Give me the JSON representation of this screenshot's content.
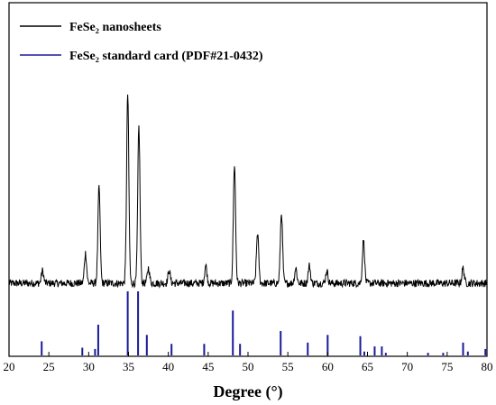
{
  "chart_data": {
    "type": "line",
    "xlabel": "Degree (°)",
    "xlim": [
      20,
      80
    ],
    "x_ticks": [
      20,
      25,
      30,
      35,
      40,
      45,
      50,
      55,
      60,
      65,
      70,
      75,
      80
    ],
    "y_axis_visible": false,
    "grid": false,
    "legend_placement": "top-left",
    "series": [
      {
        "name": "FeSe₂ nanosheets",
        "color": "#000000",
        "kind": "xrd_pattern",
        "baseline": 0.05,
        "peaks": [
          {
            "two_theta": 24.2,
            "intensity": 0.05
          },
          {
            "two_theta": 29.6,
            "intensity": 0.12
          },
          {
            "two_theta": 31.3,
            "intensity": 0.38
          },
          {
            "two_theta": 34.9,
            "intensity": 0.75
          },
          {
            "two_theta": 36.3,
            "intensity": 0.62
          },
          {
            "two_theta": 37.5,
            "intensity": 0.06
          },
          {
            "two_theta": 40.1,
            "intensity": 0.05
          },
          {
            "two_theta": 44.7,
            "intensity": 0.07
          },
          {
            "two_theta": 48.3,
            "intensity": 0.47
          },
          {
            "two_theta": 51.2,
            "intensity": 0.2
          },
          {
            "two_theta": 54.2,
            "intensity": 0.28
          },
          {
            "two_theta": 56.0,
            "intensity": 0.06
          },
          {
            "two_theta": 57.7,
            "intensity": 0.07
          },
          {
            "two_theta": 59.9,
            "intensity": 0.05
          },
          {
            "two_theta": 64.5,
            "intensity": 0.17
          },
          {
            "two_theta": 77.0,
            "intensity": 0.06
          }
        ]
      },
      {
        "name": "FeSe₂ standard card (PDF#21-0432)",
        "color": "#1a1a9a",
        "kind": "stick",
        "sticks": [
          {
            "two_theta": 24.1,
            "intensity": 0.22
          },
          {
            "two_theta": 29.2,
            "intensity": 0.12
          },
          {
            "two_theta": 30.8,
            "intensity": 0.1
          },
          {
            "two_theta": 31.2,
            "intensity": 0.48
          },
          {
            "two_theta": 34.9,
            "intensity": 1.0
          },
          {
            "two_theta": 36.2,
            "intensity": 1.0
          },
          {
            "two_theta": 37.3,
            "intensity": 0.32
          },
          {
            "two_theta": 40.4,
            "intensity": 0.18
          },
          {
            "two_theta": 44.5,
            "intensity": 0.18
          },
          {
            "two_theta": 48.1,
            "intensity": 0.7
          },
          {
            "two_theta": 49.0,
            "intensity": 0.18
          },
          {
            "two_theta": 54.1,
            "intensity": 0.38
          },
          {
            "two_theta": 57.5,
            "intensity": 0.2
          },
          {
            "two_theta": 60.0,
            "intensity": 0.32
          },
          {
            "two_theta": 64.1,
            "intensity": 0.3
          },
          {
            "two_theta": 64.6,
            "intensity": 0.06
          },
          {
            "two_theta": 65.9,
            "intensity": 0.14
          },
          {
            "two_theta": 66.8,
            "intensity": 0.14
          },
          {
            "two_theta": 67.3,
            "intensity": 0.04
          },
          {
            "two_theta": 72.6,
            "intensity": 0.04
          },
          {
            "two_theta": 74.5,
            "intensity": 0.04
          },
          {
            "two_theta": 77.0,
            "intensity": 0.2
          },
          {
            "two_theta": 77.6,
            "intensity": 0.06
          },
          {
            "two_theta": 79.8,
            "intensity": 0.1
          }
        ]
      }
    ]
  }
}
